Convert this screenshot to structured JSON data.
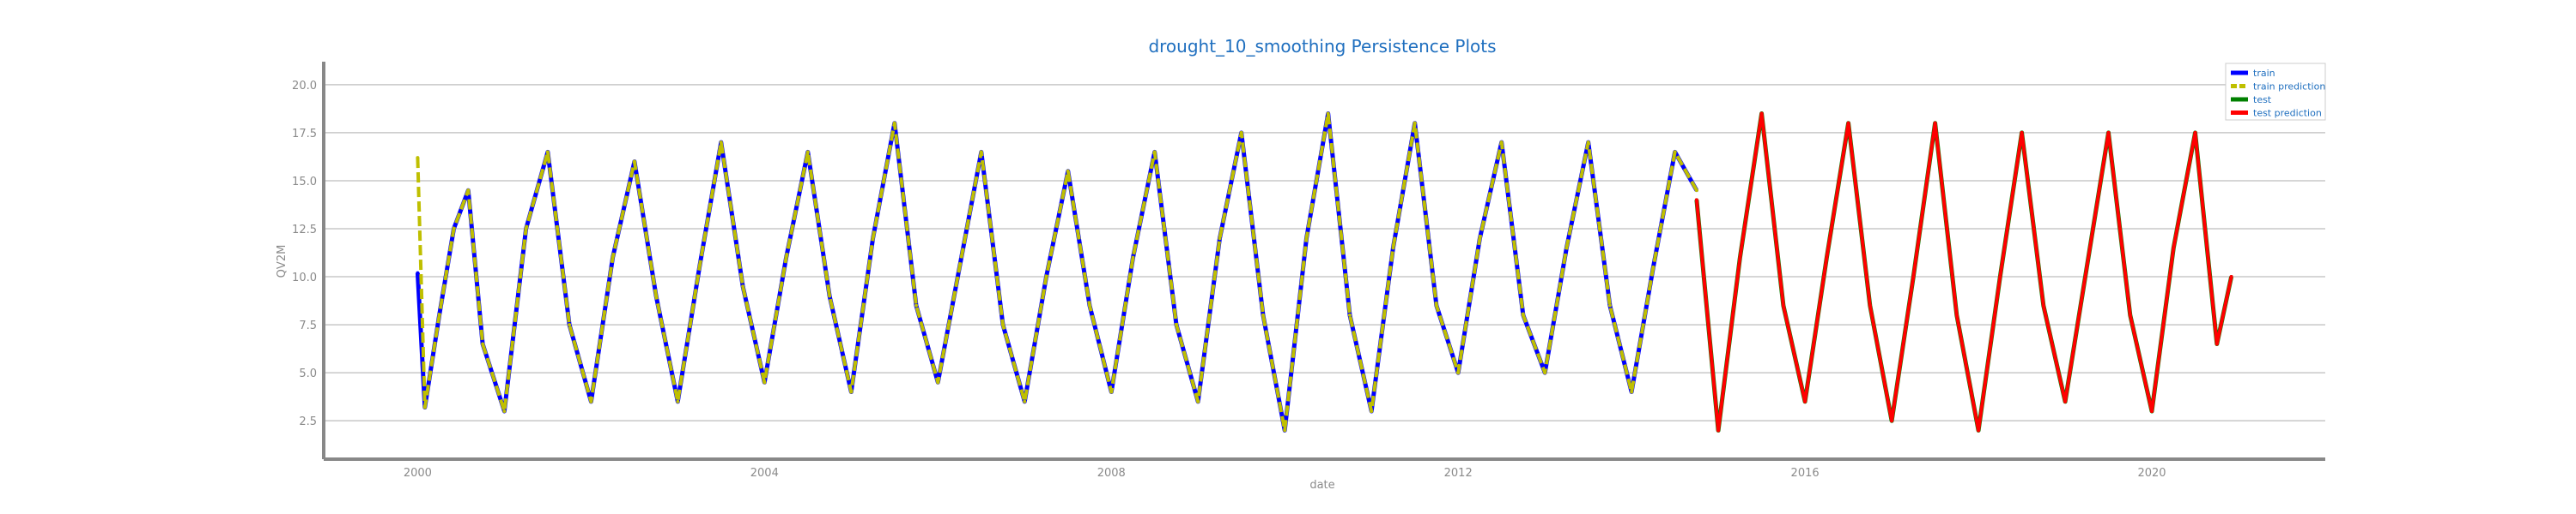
{
  "chart_data": {
    "type": "line",
    "title": "drought_10_smoothing Persistence Plots",
    "xlabel": "date",
    "ylabel": "QV2M",
    "xlim": [
      "1998-12-01",
      "2022-01-01"
    ],
    "ylim": [
      0.5,
      21.2
    ],
    "x_ticks": [
      "2000",
      "2004",
      "2008",
      "2012",
      "2016",
      "2020"
    ],
    "y_ticks": [
      "2.5",
      "5.0",
      "7.5",
      "10.0",
      "12.5",
      "15.0",
      "17.5",
      "20.0"
    ],
    "grid": "horizontal",
    "legend_position": "top-right",
    "legend": [
      "train",
      "train prediction",
      "test",
      "test prediction"
    ],
    "colors": {
      "train": "#0000ff",
      "train_prediction": "#bfbf00",
      "test": "#008000",
      "test_prediction": "#ff0000"
    },
    "series": [
      {
        "name": "train",
        "x": [
          "2000-01",
          "2000-02",
          "2000-04",
          "2000-06",
          "2000-08",
          "2000-10",
          "2001-01",
          "2001-04",
          "2001-07",
          "2001-10",
          "2002-01",
          "2002-04",
          "2002-07",
          "2002-10",
          "2003-01",
          "2003-04",
          "2003-07",
          "2003-10",
          "2004-01",
          "2004-04",
          "2004-07",
          "2004-10",
          "2005-01",
          "2005-04",
          "2005-07",
          "2005-10",
          "2006-01",
          "2006-04",
          "2006-07",
          "2006-10",
          "2007-01",
          "2007-04",
          "2007-07",
          "2007-10",
          "2008-01",
          "2008-04",
          "2008-07",
          "2008-10",
          "2009-01",
          "2009-04",
          "2009-07",
          "2009-10",
          "2010-01",
          "2010-04",
          "2010-07",
          "2010-10",
          "2011-01",
          "2011-04",
          "2011-07",
          "2011-10",
          "2012-01",
          "2012-04",
          "2012-07",
          "2012-10",
          "2013-01",
          "2013-04",
          "2013-07",
          "2013-10",
          "2014-01",
          "2014-04",
          "2014-07",
          "2014-10"
        ],
        "y": [
          10.2,
          3.2,
          8.0,
          12.5,
          14.5,
          6.5,
          3.0,
          12.5,
          16.5,
          7.5,
          3.5,
          11.0,
          16.0,
          9.0,
          3.5,
          10.5,
          17.0,
          9.5,
          4.5,
          11.0,
          16.5,
          9.0,
          4.0,
          12.0,
          18.0,
          8.5,
          4.5,
          10.5,
          16.5,
          7.5,
          3.5,
          10.0,
          15.5,
          8.5,
          4.0,
          11.0,
          16.5,
          7.5,
          3.5,
          12.0,
          17.5,
          8.0,
          2.0,
          12.0,
          18.5,
          8.0,
          3.0,
          11.5,
          18.0,
          8.5,
          5.0,
          12.0,
          17.0,
          8.0,
          5.0,
          11.5,
          17.0,
          8.5,
          4.0,
          10.5,
          16.5,
          14.5
        ]
      },
      {
        "name": "train prediction",
        "x": [
          "2000-01",
          "2000-02",
          "2000-04",
          "2000-06",
          "2000-08",
          "2000-10",
          "2001-01",
          "2001-04",
          "2001-07",
          "2001-10",
          "2002-01",
          "2002-04",
          "2002-07",
          "2002-10",
          "2003-01",
          "2003-04",
          "2003-07",
          "2003-10",
          "2004-01",
          "2004-04",
          "2004-07",
          "2004-10",
          "2005-01",
          "2005-04",
          "2005-07",
          "2005-10",
          "2006-01",
          "2006-04",
          "2006-07",
          "2006-10",
          "2007-01",
          "2007-04",
          "2007-07",
          "2007-10",
          "2008-01",
          "2008-04",
          "2008-07",
          "2008-10",
          "2009-01",
          "2009-04",
          "2009-07",
          "2009-10",
          "2010-01",
          "2010-04",
          "2010-07",
          "2010-10",
          "2011-01",
          "2011-04",
          "2011-07",
          "2011-10",
          "2012-01",
          "2012-04",
          "2012-07",
          "2012-10",
          "2013-01",
          "2013-04",
          "2013-07",
          "2013-10",
          "2014-01",
          "2014-04",
          "2014-07",
          "2014-10"
        ],
        "y": [
          16.2,
          3.2,
          8.0,
          12.5,
          14.5,
          6.5,
          3.0,
          12.5,
          16.5,
          7.5,
          3.5,
          11.0,
          16.0,
          9.0,
          3.5,
          10.5,
          17.0,
          9.5,
          4.5,
          11.0,
          16.5,
          9.0,
          4.0,
          12.0,
          18.0,
          8.5,
          4.5,
          10.5,
          16.5,
          7.5,
          3.5,
          10.0,
          15.5,
          8.5,
          4.0,
          11.0,
          16.5,
          7.5,
          3.5,
          12.0,
          17.5,
          8.0,
          2.0,
          12.0,
          18.5,
          8.0,
          3.0,
          11.5,
          18.0,
          8.5,
          5.0,
          12.0,
          17.0,
          8.0,
          5.0,
          11.5,
          17.0,
          8.5,
          4.0,
          10.5,
          16.5,
          14.5
        ]
      },
      {
        "name": "test",
        "x": [
          "2014-10",
          "2015-01",
          "2015-04",
          "2015-07",
          "2015-10",
          "2016-01",
          "2016-04",
          "2016-07",
          "2016-10",
          "2017-01",
          "2017-04",
          "2017-07",
          "2017-10",
          "2018-01",
          "2018-04",
          "2018-07",
          "2018-10",
          "2019-01",
          "2019-04",
          "2019-07",
          "2019-10",
          "2020-01",
          "2020-04",
          "2020-07",
          "2020-10",
          "2020-12"
        ],
        "y": [
          14.0,
          2.0,
          11.0,
          18.5,
          8.5,
          3.5,
          11.0,
          18.0,
          8.5,
          2.5,
          10.0,
          18.0,
          8.0,
          2.0,
          10.0,
          17.5,
          8.5,
          3.5,
          10.5,
          17.5,
          8.0,
          3.0,
          11.5,
          17.5,
          6.5,
          10.0
        ]
      },
      {
        "name": "test prediction",
        "x": [
          "2014-10",
          "2015-01",
          "2015-04",
          "2015-07",
          "2015-10",
          "2016-01",
          "2016-04",
          "2016-07",
          "2016-10",
          "2017-01",
          "2017-04",
          "2017-07",
          "2017-10",
          "2018-01",
          "2018-04",
          "2018-07",
          "2018-10",
          "2019-01",
          "2019-04",
          "2019-07",
          "2019-10",
          "2020-01",
          "2020-04",
          "2020-07",
          "2020-10",
          "2020-12"
        ],
        "y": [
          14.0,
          2.0,
          11.0,
          18.5,
          8.5,
          3.5,
          11.0,
          18.0,
          8.5,
          2.5,
          10.0,
          18.0,
          8.0,
          2.0,
          10.0,
          17.5,
          8.5,
          3.5,
          10.5,
          17.5,
          8.0,
          3.0,
          11.5,
          17.5,
          6.5,
          10.0
        ]
      }
    ]
  }
}
